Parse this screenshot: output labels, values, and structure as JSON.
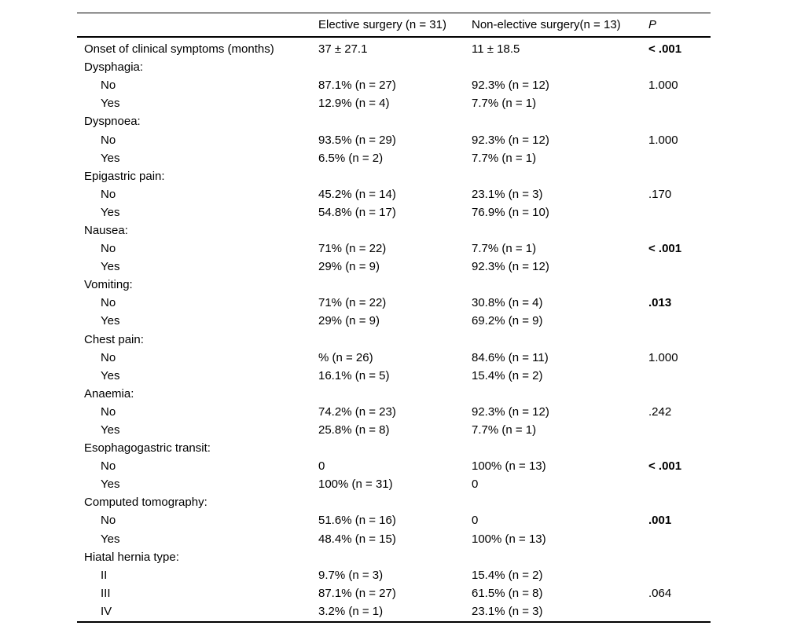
{
  "table": {
    "columns": [
      "",
      "Elective surgery (n = 31)",
      "Non-elective surgery(n = 13)",
      "P"
    ],
    "rows": [
      {
        "label": "Onset of clinical symptoms (months)",
        "indent": 0,
        "elective": "37 ± 27.1",
        "non_elective": "11 ± 18.5",
        "p": "< .001",
        "p_bold": true
      },
      {
        "label": "Dysphagia:",
        "indent": 0,
        "elective": "",
        "non_elective": "",
        "p": "",
        "p_bold": false
      },
      {
        "label": "No",
        "indent": 1,
        "elective": "87.1% (n = 27)",
        "non_elective": "92.3% (n = 12)",
        "p": "1.000",
        "p_bold": false
      },
      {
        "label": "Yes",
        "indent": 1,
        "elective": "12.9% (n = 4)",
        "non_elective": "7.7% (n = 1)",
        "p": "",
        "p_bold": false
      },
      {
        "label": "Dyspnoea:",
        "indent": 0,
        "elective": "",
        "non_elective": "",
        "p": "",
        "p_bold": false
      },
      {
        "label": "No",
        "indent": 1,
        "elective": "93.5% (n = 29)",
        "non_elective": "92.3% (n = 12)",
        "p": "1.000",
        "p_bold": false
      },
      {
        "label": "Yes",
        "indent": 1,
        "elective": "6.5% (n = 2)",
        "non_elective": "7.7% (n = 1)",
        "p": "",
        "p_bold": false
      },
      {
        "label": "Epigastric pain:",
        "indent": 0,
        "elective": "",
        "non_elective": "",
        "p": "",
        "p_bold": false
      },
      {
        "label": "No",
        "indent": 1,
        "elective": "45.2% (n = 14)",
        "non_elective": "23.1% (n = 3)",
        "p": ".170",
        "p_bold": false
      },
      {
        "label": "Yes",
        "indent": 1,
        "elective": "54.8% (n = 17)",
        "non_elective": "76.9% (n = 10)",
        "p": "",
        "p_bold": false
      },
      {
        "label": "Nausea:",
        "indent": 0,
        "elective": "",
        "non_elective": "",
        "p": "",
        "p_bold": false
      },
      {
        "label": "No",
        "indent": 1,
        "elective": "71% (n = 22)",
        "non_elective": "7.7% (n = 1)",
        "p": "< .001",
        "p_bold": true
      },
      {
        "label": "Yes",
        "indent": 1,
        "elective": "29% (n = 9)",
        "non_elective": "92.3% (n = 12)",
        "p": "",
        "p_bold": false
      },
      {
        "label": "Vomiting:",
        "indent": 0,
        "elective": "",
        "non_elective": "",
        "p": "",
        "p_bold": false
      },
      {
        "label": "No",
        "indent": 1,
        "elective": "71% (n = 22)",
        "non_elective": "30.8% (n = 4)",
        "p": ".013",
        "p_bold": true
      },
      {
        "label": "Yes",
        "indent": 1,
        "elective": "29% (n = 9)",
        "non_elective": "69.2% (n = 9)",
        "p": "",
        "p_bold": false
      },
      {
        "label": "Chest pain:",
        "indent": 0,
        "elective": "",
        "non_elective": "",
        "p": "",
        "p_bold": false
      },
      {
        "label": "No",
        "indent": 1,
        "elective": "% (n = 26)",
        "non_elective": "84.6% (n = 11)",
        "p": "1.000",
        "p_bold": false
      },
      {
        "label": "Yes",
        "indent": 1,
        "elective": "16.1% (n = 5)",
        "non_elective": "15.4% (n = 2)",
        "p": "",
        "p_bold": false
      },
      {
        "label": "Anaemia:",
        "indent": 0,
        "elective": "",
        "non_elective": "",
        "p": "",
        "p_bold": false
      },
      {
        "label": "No",
        "indent": 1,
        "elective": "74.2% (n = 23)",
        "non_elective": "92.3% (n = 12)",
        "p": ".242",
        "p_bold": false
      },
      {
        "label": "Yes",
        "indent": 1,
        "elective": "25.8% (n = 8)",
        "non_elective": "7.7% (n = 1)",
        "p": "",
        "p_bold": false
      },
      {
        "label": "Esophagogastric transit:",
        "indent": 0,
        "elective": "",
        "non_elective": "",
        "p": "",
        "p_bold": false
      },
      {
        "label": "No",
        "indent": 1,
        "elective": "0",
        "non_elective": "100% (n = 13)",
        "p": "< .001",
        "p_bold": true
      },
      {
        "label": "Yes",
        "indent": 1,
        "elective": "100% (n = 31)",
        "non_elective": "0",
        "p": "",
        "p_bold": false
      },
      {
        "label": "Computed tomography:",
        "indent": 0,
        "elective": "",
        "non_elective": "",
        "p": "",
        "p_bold": false
      },
      {
        "label": "No",
        "indent": 1,
        "elective": "51.6% (n = 16)",
        "non_elective": "0",
        "p": ".001",
        "p_bold": true
      },
      {
        "label": "Yes",
        "indent": 1,
        "elective": "48.4% (n = 15)",
        "non_elective": "100% (n = 13)",
        "p": "",
        "p_bold": false
      },
      {
        "label": "Hiatal hernia type:",
        "indent": 0,
        "elective": "",
        "non_elective": "",
        "p": "",
        "p_bold": false
      },
      {
        "label": "II",
        "indent": 1,
        "elective": "9.7% (n = 3)",
        "non_elective": "15.4% (n = 2)",
        "p": "",
        "p_bold": false
      },
      {
        "label": "III",
        "indent": 1,
        "elective": "87.1% (n = 27)",
        "non_elective": "61.5% (n = 8)",
        "p": ".064",
        "p_bold": false
      },
      {
        "label": "IV",
        "indent": 1,
        "elective": "3.2% (n = 1)",
        "non_elective": "23.1% (n = 3)",
        "p": "",
        "p_bold": false
      }
    ]
  }
}
